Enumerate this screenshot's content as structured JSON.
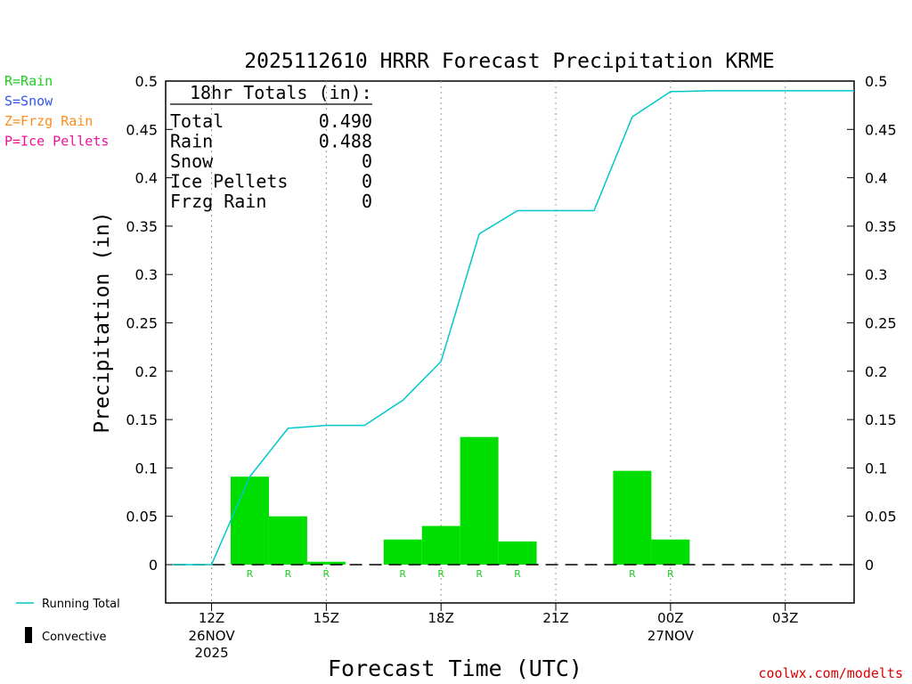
{
  "chart_data": {
    "type": "bar",
    "title": "2025112610 HRRR Forecast Precipitation KRME",
    "xlabel": "Forecast Time (UTC)",
    "ylabel": "Precipitation (in)",
    "ylim": [
      -0.04,
      0.5
    ],
    "xlim": [
      10.8,
      28.8
    ],
    "y_ticks": [
      "0",
      "0.05",
      "0.1",
      "0.15",
      "0.2",
      "0.25",
      "0.3",
      "0.35",
      "0.4",
      "0.45",
      "0.5"
    ],
    "y_tick_values": [
      0,
      0.05,
      0.1,
      0.15,
      0.2,
      0.25,
      0.3,
      0.35,
      0.4,
      0.45,
      0.5
    ],
    "x_ticks": [
      {
        "hour": 12,
        "label": "12Z",
        "sub1": "26NOV",
        "sub2": "2025"
      },
      {
        "hour": 15,
        "label": "15Z",
        "sub1": "",
        "sub2": ""
      },
      {
        "hour": 18,
        "label": "18Z",
        "sub1": "",
        "sub2": ""
      },
      {
        "hour": 21,
        "label": "21Z",
        "sub1": "",
        "sub2": ""
      },
      {
        "hour": 24,
        "label": "00Z",
        "sub1": "27NOV",
        "sub2": ""
      },
      {
        "hour": 27,
        "label": "03Z",
        "sub1": "",
        "sub2": ""
      }
    ],
    "grid": "vertical dotted",
    "series": [
      {
        "name": "Rain",
        "kind": "bar",
        "color": "#00dd00",
        "bars": [
          {
            "start": 12.5,
            "end": 13.5,
            "value": 0.091,
            "ptype": "R"
          },
          {
            "start": 13.5,
            "end": 14.5,
            "value": 0.05,
            "ptype": "R"
          },
          {
            "start": 14.5,
            "end": 15.5,
            "value": 0.003,
            "ptype": "R"
          },
          {
            "start": 15.5,
            "end": 16.5,
            "value": 0,
            "ptype": ""
          },
          {
            "start": 16.5,
            "end": 17.5,
            "value": 0.026,
            "ptype": "R"
          },
          {
            "start": 17.5,
            "end": 18.5,
            "value": 0.04,
            "ptype": "R"
          },
          {
            "start": 18.5,
            "end": 19.5,
            "value": 0.132,
            "ptype": "R"
          },
          {
            "start": 19.5,
            "end": 20.5,
            "value": 0.024,
            "ptype": "R"
          },
          {
            "start": 20.5,
            "end": 21.5,
            "value": 0,
            "ptype": ""
          },
          {
            "start": 21.5,
            "end": 22.5,
            "value": 0,
            "ptype": ""
          },
          {
            "start": 22.5,
            "end": 23.5,
            "value": 0.097,
            "ptype": "R"
          },
          {
            "start": 23.5,
            "end": 24.5,
            "value": 0.026,
            "ptype": "R"
          }
        ]
      },
      {
        "name": "Running Total",
        "kind": "line",
        "color": "#00c8c8",
        "points": [
          [
            11,
            0
          ],
          [
            12,
            0
          ],
          [
            13,
            0.091
          ],
          [
            14,
            0.141
          ],
          [
            15,
            0.144
          ],
          [
            16,
            0.144
          ],
          [
            17,
            0.17
          ],
          [
            18,
            0.21
          ],
          [
            19,
            0.342
          ],
          [
            20,
            0.366
          ],
          [
            21,
            0.366
          ],
          [
            22,
            0.366
          ],
          [
            23,
            0.463
          ],
          [
            24,
            0.489
          ],
          [
            25,
            0.49
          ],
          [
            26,
            0.49
          ],
          [
            27,
            0.49
          ],
          [
            28,
            0.49
          ],
          [
            28.8,
            0.49
          ]
        ]
      }
    ],
    "totals": {
      "header": "18hr Totals (in):",
      "rows": [
        {
          "label": "Total",
          "value": "0.490"
        },
        {
          "label": "Rain",
          "value": "0.488"
        },
        {
          "label": "Snow",
          "value": "0"
        },
        {
          "label": "Ice Pellets",
          "value": "0"
        },
        {
          "label": "Frzg Rain",
          "value": "0"
        }
      ]
    },
    "type_legend": [
      {
        "text": "R=Rain",
        "color": "#22cc22"
      },
      {
        "text": "S=Snow",
        "color": "#3355ee"
      },
      {
        "text": "Z=Frzg Rain",
        "color": "#ff8c1a"
      },
      {
        "text": "P=Ice Pellets",
        "color": "#ee1199"
      }
    ],
    "line_legend": {
      "running_total": "Running Total",
      "convective": "Convective"
    },
    "footer": "coolwx.com/modelts"
  }
}
